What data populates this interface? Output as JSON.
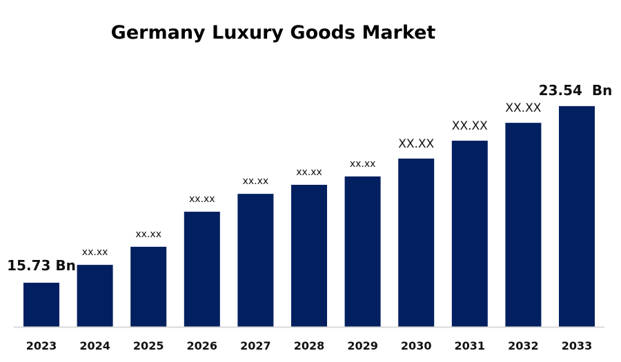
{
  "chart_data": {
    "type": "bar",
    "title": "Germany Luxury Goods Market",
    "xlabel": "",
    "ylabel": "",
    "categories": [
      "2023",
      "2024",
      "2025",
      "2026",
      "2027",
      "2028",
      "2029",
      "2030",
      "2031",
      "2032",
      "2033"
    ],
    "values": [
      15.73,
      16.52,
      17.32,
      18.87,
      19.66,
      20.06,
      20.43,
      21.22,
      22.01,
      22.8,
      23.54
    ],
    "data_labels": [
      "15.73 Bn",
      "xx.xx",
      "xx.xx",
      "xx.xx",
      "xx.xx",
      "xx.xx",
      "xx.xx",
      "XX.XX",
      "XX.XX",
      "XX.XX",
      "23.54  Bn"
    ],
    "ylim": [
      13.78,
      24.5
    ],
    "grid": false,
    "legend": "none",
    "colors": {
      "bar": "#022060",
      "axis": "#d9d9d9"
    }
  }
}
